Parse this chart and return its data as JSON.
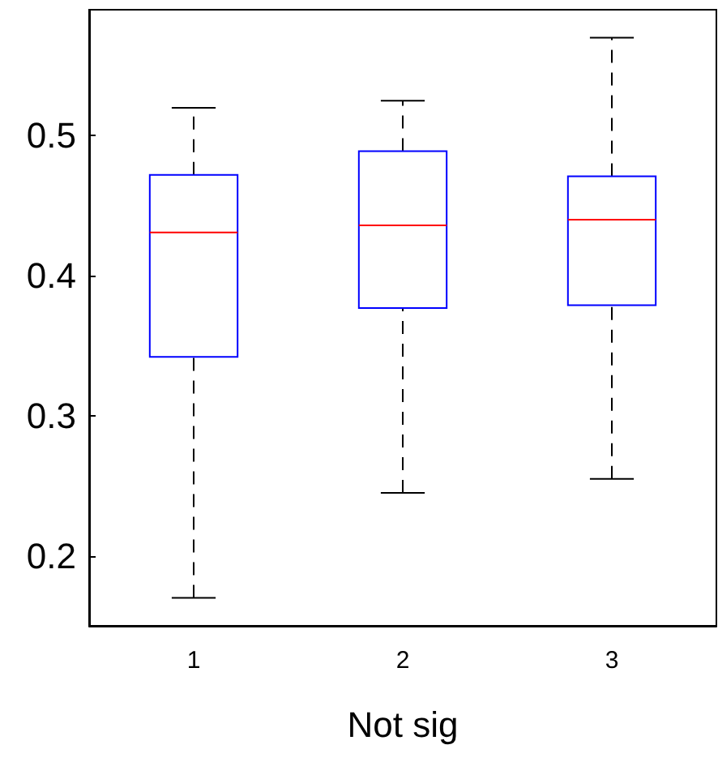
{
  "chart_data": {
    "type": "box",
    "xlabel": "Not sig",
    "categories": [
      "1",
      "2",
      "3"
    ],
    "boxes": [
      {
        "low": 0.17,
        "q1": 0.342,
        "median": 0.431,
        "q3": 0.472,
        "high": 0.52
      },
      {
        "low": 0.245,
        "q1": 0.377,
        "median": 0.436,
        "q3": 0.489,
        "high": 0.525
      },
      {
        "low": 0.255,
        "q1": 0.379,
        "median": 0.44,
        "q3": 0.471,
        "high": 0.57
      }
    ],
    "color": "#0000ff",
    "ylim": [
      0.15,
      0.59
    ],
    "yticks": [
      0.2,
      0.3,
      0.4,
      0.5
    ],
    "grid": false
  }
}
